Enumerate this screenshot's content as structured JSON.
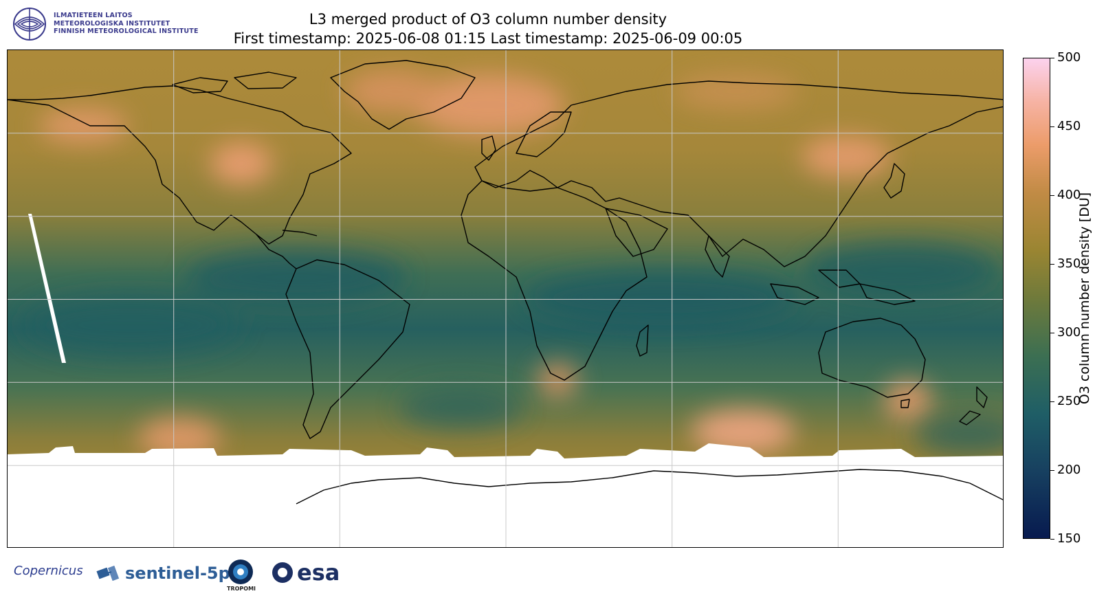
{
  "header": {
    "institute_lines": [
      "ILMATIETEEN LAITOS",
      "METEOROLOGISKA INSTITUTET",
      "FINNISH METEOROLOGICAL INSTITUTE"
    ],
    "title": "L3 merged product of O3 column number density",
    "subtitle": "First timestamp: 2025-06-08 01:15   Last timestamp: 2025-06-09 00:05"
  },
  "map": {
    "projection": "plate-carree",
    "lon_range": [
      -180,
      180
    ],
    "lat_range": [
      -90,
      90
    ],
    "gridline_lons": [
      -120,
      -60,
      0,
      60,
      120
    ],
    "gridline_lats": [
      -60,
      -30,
      0,
      30,
      60
    ],
    "coastlines": true,
    "no_data_color": "#ffffff",
    "no_data_regions": [
      "antarctica-south-of-60S",
      "orbit-gap-strip-eastern-pacific"
    ]
  },
  "colorbar": {
    "label": "O3 column number density [DU]",
    "min": 150,
    "max": 500,
    "ticks": [
      150,
      200,
      250,
      300,
      350,
      400,
      450,
      500
    ],
    "colors": [
      "#071a4f",
      "#1f5e66",
      "#6f7a3b",
      "#c18b45",
      "#ec9c6a",
      "#fcd2ee"
    ]
  },
  "logos": {
    "copernicus": "opernicus",
    "sentinel": "sentinel-5p",
    "tropomi": "TROPOMI",
    "esa": "esa"
  }
}
